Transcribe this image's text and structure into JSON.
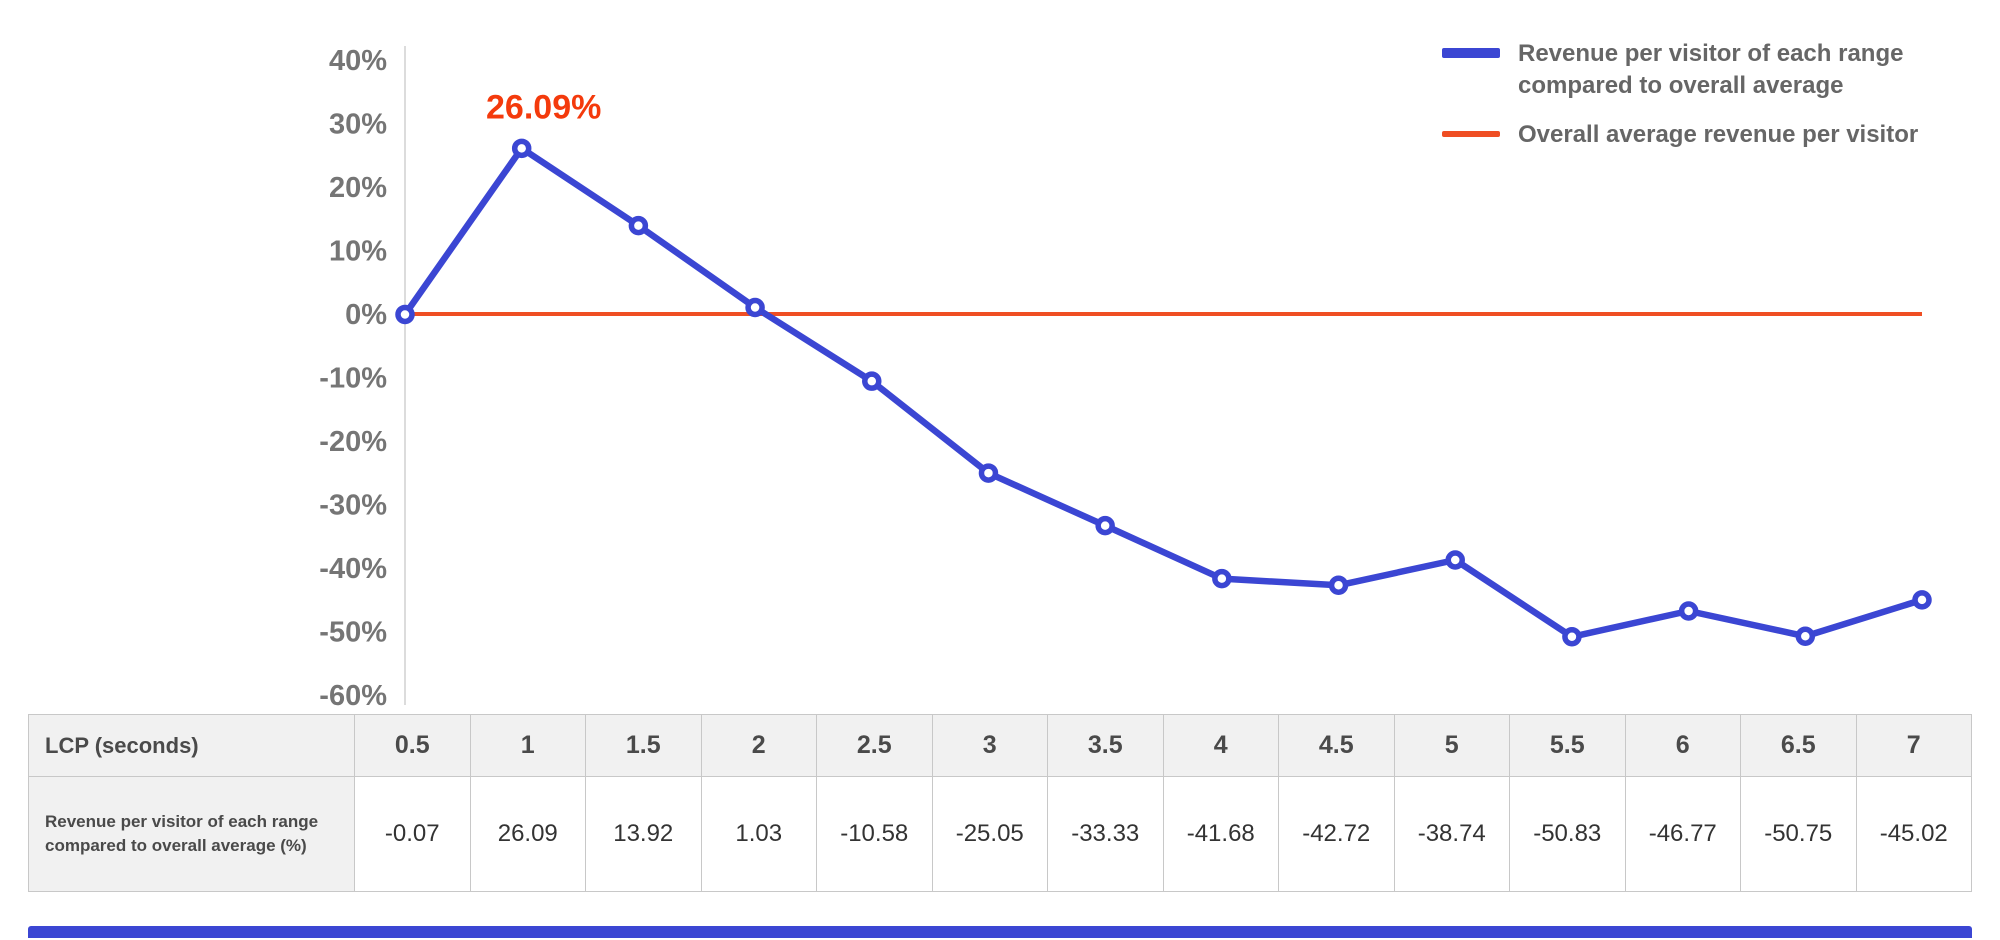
{
  "colors": {
    "blue": "#3b46d3",
    "red": "#ef4e23",
    "annotation_red": "#f43a0c",
    "axis_label": "#757575",
    "axis_line": "#dcdcdc",
    "legend_text": "#666666",
    "table_border": "#c8c8c8",
    "table_header_bg": "#f1f1f1"
  },
  "legend": {
    "items": [
      {
        "label": "Revenue per visitor of each range compared to overall average",
        "color": "#3b46d3",
        "style": "thick"
      },
      {
        "label": "Overall average revenue per visitor",
        "color": "#ef4e23",
        "style": "thin"
      }
    ]
  },
  "chart_data": {
    "type": "line",
    "title": "",
    "xlabel": "LCP (seconds)",
    "ylabel": "",
    "x": [
      0.5,
      1,
      1.5,
      2,
      2.5,
      3,
      3.5,
      4,
      4.5,
      5,
      5.5,
      6,
      6.5,
      7
    ],
    "ylim": [
      -60,
      40
    ],
    "ytick_step": 10,
    "ytick_suffix": "%",
    "grid": false,
    "legend_position": "top-right",
    "series": [
      {
        "name": "Revenue per visitor of each range compared to overall average",
        "color": "#3b46d3",
        "values": [
          -0.07,
          26.09,
          13.92,
          1.03,
          -10.58,
          -25.05,
          -33.33,
          -41.68,
          -42.72,
          -38.74,
          -50.83,
          -46.77,
          -50.75,
          -45.02
        ]
      },
      {
        "name": "Overall average revenue per visitor",
        "color": "#ef4e23",
        "constant": 0
      }
    ],
    "annotation": {
      "text": "26.09%",
      "x": 1,
      "y": 26.09,
      "color": "#f43a0c"
    }
  },
  "table": {
    "header": {
      "label": "LCP (seconds)",
      "values": [
        "0.5",
        "1",
        "1.5",
        "2",
        "2.5",
        "3",
        "3.5",
        "4",
        "4.5",
        "5",
        "5.5",
        "6",
        "6.5",
        "7"
      ]
    },
    "rows": [
      {
        "label": "Revenue per visitor of each range compared to overall average (%)",
        "values": [
          "-0.07",
          "26.09",
          "13.92",
          "1.03",
          "-10.58",
          "-25.05",
          "-33.33",
          "-41.68",
          "-42.72",
          "-38.74",
          "-50.83",
          "-46.77",
          "-50.75",
          "-45.02"
        ]
      }
    ]
  }
}
